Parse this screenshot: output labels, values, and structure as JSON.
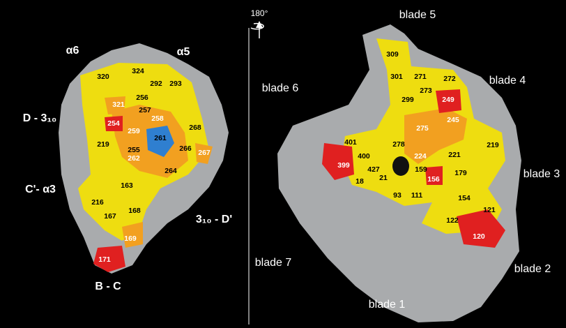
{
  "left_panel": {
    "regions": [
      "α6",
      "α5",
      "D - 3₁₀",
      "C'- α3",
      "3₁₀ - D'",
      "B - C"
    ],
    "residues": [
      "320",
      "324",
      "292",
      "293",
      "256",
      "321",
      "257",
      "258",
      "254",
      "259",
      "268",
      "261",
      "219",
      "255",
      "266",
      "267",
      "262",
      "264",
      "163",
      "216",
      "168",
      "167",
      "169",
      "171"
    ]
  },
  "right_panel": {
    "rotation": "180°",
    "blades": [
      "blade 5",
      "blade 6",
      "blade 4",
      "blade 3",
      "blade 7",
      "blade 2",
      "blade 1"
    ],
    "residues": [
      "309",
      "301",
      "271",
      "272",
      "273",
      "299",
      "249",
      "275",
      "245",
      "401",
      "278",
      "219",
      "400",
      "224",
      "221",
      "399",
      "427",
      "159",
      "179",
      "18",
      "21",
      "156",
      "93",
      "111",
      "154",
      "121",
      "122",
      "120"
    ]
  }
}
